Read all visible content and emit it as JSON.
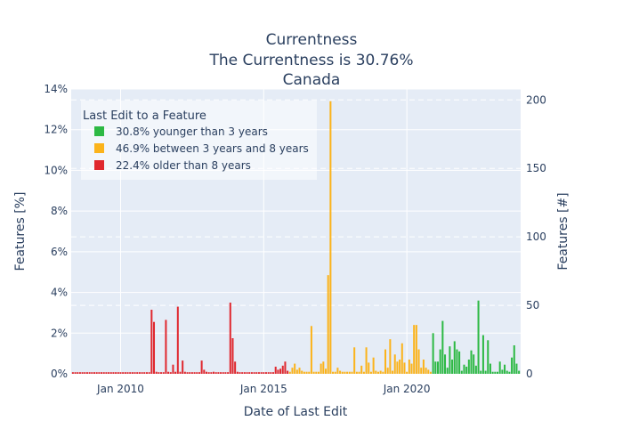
{
  "chart_data": {
    "type": "bar",
    "title": "Currentness",
    "subtitle": "The Currentness is 30.76%",
    "region": "Canada",
    "xlabel": "Date of Last Edit",
    "ylabel_left": "Features [%]",
    "ylabel_right": "Features [#]",
    "x_tick_labels": [
      "Jan 2010",
      "Jan 2015",
      "Jan 2020"
    ],
    "y_left_ticks": [
      "0%",
      "2%",
      "4%",
      "6%",
      "8%",
      "10%",
      "12%",
      "14%"
    ],
    "y_right_ticks": [
      "0",
      "50",
      "100",
      "150",
      "200"
    ],
    "ylim_left": [
      0,
      14
    ],
    "ylim_right": [
      0,
      208
    ],
    "xlim": [
      "2008-05",
      "2023-12"
    ],
    "grid": true,
    "legend": {
      "title": "Last Edit to a Feature",
      "position": "top-left",
      "items": [
        {
          "label": "30.8% younger than 3 years",
          "color": "#2db944"
        },
        {
          "label": "46.9% between 3 years and 8 years",
          "color": "#fbb31b"
        },
        {
          "label": "22.4% older than 8 years",
          "color": "#e0282e"
        }
      ]
    },
    "series": [
      {
        "name": "22.4% older than 8 years",
        "color": "#e0282e",
        "points": [
          {
            "x": "2008-05",
            "y": 0.08
          },
          {
            "x": "2008-06",
            "y": 0.08
          },
          {
            "x": "2008-07",
            "y": 0.08
          },
          {
            "x": "2008-08",
            "y": 0.08
          },
          {
            "x": "2008-09",
            "y": 0.08
          },
          {
            "x": "2008-10",
            "y": 0.08
          },
          {
            "x": "2008-11",
            "y": 0.08
          },
          {
            "x": "2008-12",
            "y": 0.08
          },
          {
            "x": "2009-01",
            "y": 0.08
          },
          {
            "x": "2009-02",
            "y": 0.08
          },
          {
            "x": "2009-03",
            "y": 0.08
          },
          {
            "x": "2009-04",
            "y": 0.08
          },
          {
            "x": "2009-05",
            "y": 0.08
          },
          {
            "x": "2009-06",
            "y": 0.08
          },
          {
            "x": "2009-07",
            "y": 0.08
          },
          {
            "x": "2009-08",
            "y": 0.08
          },
          {
            "x": "2009-09",
            "y": 0.08
          },
          {
            "x": "2009-10",
            "y": 0.08
          },
          {
            "x": "2009-11",
            "y": 0.08
          },
          {
            "x": "2009-12",
            "y": 0.08
          },
          {
            "x": "2010-01",
            "y": 0.08
          },
          {
            "x": "2010-02",
            "y": 0.08
          },
          {
            "x": "2010-03",
            "y": 0.08
          },
          {
            "x": "2010-04",
            "y": 0.08
          },
          {
            "x": "2010-05",
            "y": 0.08
          },
          {
            "x": "2010-06",
            "y": 0.08
          },
          {
            "x": "2010-07",
            "y": 0.08
          },
          {
            "x": "2010-08",
            "y": 0.08
          },
          {
            "x": "2010-09",
            "y": 0.08
          },
          {
            "x": "2010-10",
            "y": 0.08
          },
          {
            "x": "2010-11",
            "y": 0.08
          },
          {
            "x": "2010-12",
            "y": 0.08
          },
          {
            "x": "2011-01",
            "y": 0.08
          },
          {
            "x": "2011-02",
            "y": 3.15
          },
          {
            "x": "2011-03",
            "y": 2.55
          },
          {
            "x": "2011-04",
            "y": 0.1
          },
          {
            "x": "2011-05",
            "y": 0.08
          },
          {
            "x": "2011-06",
            "y": 0.08
          },
          {
            "x": "2011-07",
            "y": 0.08
          },
          {
            "x": "2011-08",
            "y": 2.65
          },
          {
            "x": "2011-09",
            "y": 0.1
          },
          {
            "x": "2011-10",
            "y": 0.08
          },
          {
            "x": "2011-11",
            "y": 0.45
          },
          {
            "x": "2011-12",
            "y": 0.1
          },
          {
            "x": "2012-01",
            "y": 3.3
          },
          {
            "x": "2012-02",
            "y": 0.1
          },
          {
            "x": "2012-03",
            "y": 0.65
          },
          {
            "x": "2012-04",
            "y": 0.1
          },
          {
            "x": "2012-05",
            "y": 0.08
          },
          {
            "x": "2012-06",
            "y": 0.08
          },
          {
            "x": "2012-07",
            "y": 0.08
          },
          {
            "x": "2012-08",
            "y": 0.08
          },
          {
            "x": "2012-09",
            "y": 0.08
          },
          {
            "x": "2012-10",
            "y": 0.08
          },
          {
            "x": "2012-11",
            "y": 0.65
          },
          {
            "x": "2012-12",
            "y": 0.2
          },
          {
            "x": "2013-01",
            "y": 0.1
          },
          {
            "x": "2013-02",
            "y": 0.08
          },
          {
            "x": "2013-03",
            "y": 0.08
          },
          {
            "x": "2013-04",
            "y": 0.1
          },
          {
            "x": "2013-05",
            "y": 0.08
          },
          {
            "x": "2013-06",
            "y": 0.08
          },
          {
            "x": "2013-07",
            "y": 0.08
          },
          {
            "x": "2013-08",
            "y": 0.08
          },
          {
            "x": "2013-09",
            "y": 0.08
          },
          {
            "x": "2013-10",
            "y": 0.08
          },
          {
            "x": "2013-11",
            "y": 3.5
          },
          {
            "x": "2013-12",
            "y": 1.75
          },
          {
            "x": "2014-01",
            "y": 0.6
          },
          {
            "x": "2014-02",
            "y": 0.1
          },
          {
            "x": "2014-03",
            "y": 0.08
          },
          {
            "x": "2014-04",
            "y": 0.08
          },
          {
            "x": "2014-05",
            "y": 0.08
          },
          {
            "x": "2014-06",
            "y": 0.08
          },
          {
            "x": "2014-07",
            "y": 0.08
          },
          {
            "x": "2014-08",
            "y": 0.08
          },
          {
            "x": "2014-09",
            "y": 0.08
          },
          {
            "x": "2014-10",
            "y": 0.08
          },
          {
            "x": "2014-11",
            "y": 0.08
          },
          {
            "x": "2014-12",
            "y": 0.08
          },
          {
            "x": "2015-01",
            "y": 0.08
          },
          {
            "x": "2015-02",
            "y": 0.08
          },
          {
            "x": "2015-03",
            "y": 0.08
          },
          {
            "x": "2015-04",
            "y": 0.08
          },
          {
            "x": "2015-05",
            "y": 0.08
          },
          {
            "x": "2015-06",
            "y": 0.35
          },
          {
            "x": "2015-07",
            "y": 0.2
          },
          {
            "x": "2015-08",
            "y": 0.25
          },
          {
            "x": "2015-09",
            "y": 0.4
          },
          {
            "x": "2015-10",
            "y": 0.6
          },
          {
            "x": "2015-11",
            "y": 0.15
          }
        ]
      },
      {
        "name": "46.9% between 3 years and 8 years",
        "color": "#fbb31b",
        "points": [
          {
            "x": "2015-12",
            "y": 0.1
          },
          {
            "x": "2016-01",
            "y": 0.3
          },
          {
            "x": "2016-02",
            "y": 0.5
          },
          {
            "x": "2016-03",
            "y": 0.2
          },
          {
            "x": "2016-04",
            "y": 0.3
          },
          {
            "x": "2016-05",
            "y": 0.15
          },
          {
            "x": "2016-06",
            "y": 0.1
          },
          {
            "x": "2016-07",
            "y": 0.1
          },
          {
            "x": "2016-08",
            "y": 0.1
          },
          {
            "x": "2016-09",
            "y": 2.35
          },
          {
            "x": "2016-10",
            "y": 0.1
          },
          {
            "x": "2016-11",
            "y": 0.1
          },
          {
            "x": "2016-12",
            "y": 0.1
          },
          {
            "x": "2017-01",
            "y": 0.5
          },
          {
            "x": "2017-02",
            "y": 0.6
          },
          {
            "x": "2017-03",
            "y": 0.25
          },
          {
            "x": "2017-04",
            "y": 4.85
          },
          {
            "x": "2017-05",
            "y": 13.4
          },
          {
            "x": "2017-06",
            "y": 0.1
          },
          {
            "x": "2017-07",
            "y": 0.1
          },
          {
            "x": "2017-08",
            "y": 0.3
          },
          {
            "x": "2017-09",
            "y": 0.15
          },
          {
            "x": "2017-10",
            "y": 0.1
          },
          {
            "x": "2017-11",
            "y": 0.1
          },
          {
            "x": "2017-12",
            "y": 0.1
          },
          {
            "x": "2018-01",
            "y": 0.1
          },
          {
            "x": "2018-02",
            "y": 0.1
          },
          {
            "x": "2018-03",
            "y": 1.3
          },
          {
            "x": "2018-04",
            "y": 0.1
          },
          {
            "x": "2018-05",
            "y": 0.1
          },
          {
            "x": "2018-06",
            "y": 0.4
          },
          {
            "x": "2018-07",
            "y": 0.1
          },
          {
            "x": "2018-08",
            "y": 1.3
          },
          {
            "x": "2018-09",
            "y": 0.55
          },
          {
            "x": "2018-10",
            "y": 0.1
          },
          {
            "x": "2018-11",
            "y": 0.8
          },
          {
            "x": "2018-12",
            "y": 0.15
          },
          {
            "x": "2019-01",
            "y": 0.1
          },
          {
            "x": "2019-02",
            "y": 0.15
          },
          {
            "x": "2019-03",
            "y": 0.1
          },
          {
            "x": "2019-04",
            "y": 1.2
          },
          {
            "x": "2019-05",
            "y": 0.3
          },
          {
            "x": "2019-06",
            "y": 1.7
          },
          {
            "x": "2019-07",
            "y": 0.15
          },
          {
            "x": "2019-08",
            "y": 0.95
          },
          {
            "x": "2019-09",
            "y": 0.6
          },
          {
            "x": "2019-10",
            "y": 0.7
          },
          {
            "x": "2019-11",
            "y": 1.5
          },
          {
            "x": "2019-12",
            "y": 0.55
          },
          {
            "x": "2020-01",
            "y": 0.1
          },
          {
            "x": "2020-02",
            "y": 0.7
          },
          {
            "x": "2020-03",
            "y": 0.5
          },
          {
            "x": "2020-04",
            "y": 2.4
          },
          {
            "x": "2020-05",
            "y": 2.4
          },
          {
            "x": "2020-06",
            "y": 1.2
          },
          {
            "x": "2020-07",
            "y": 0.3
          },
          {
            "x": "2020-08",
            "y": 0.7
          },
          {
            "x": "2020-09",
            "y": 0.3
          },
          {
            "x": "2020-10",
            "y": 0.2
          },
          {
            "x": "2020-11",
            "y": 0.1
          }
        ]
      },
      {
        "name": "30.8% younger than 3 years",
        "color": "#2db944",
        "points": [
          {
            "x": "2020-12",
            "y": 2.0
          },
          {
            "x": "2021-01",
            "y": 0.6
          },
          {
            "x": "2021-02",
            "y": 0.6
          },
          {
            "x": "2021-03",
            "y": 1.2
          },
          {
            "x": "2021-04",
            "y": 2.6
          },
          {
            "x": "2021-05",
            "y": 0.95
          },
          {
            "x": "2021-06",
            "y": 0.3
          },
          {
            "x": "2021-07",
            "y": 1.35
          },
          {
            "x": "2021-08",
            "y": 0.7
          },
          {
            "x": "2021-09",
            "y": 1.6
          },
          {
            "x": "2021-10",
            "y": 1.2
          },
          {
            "x": "2021-11",
            "y": 1.1
          },
          {
            "x": "2021-12",
            "y": 0.15
          },
          {
            "x": "2022-01",
            "y": 0.45
          },
          {
            "x": "2022-02",
            "y": 0.35
          },
          {
            "x": "2022-03",
            "y": 0.7
          },
          {
            "x": "2022-04",
            "y": 1.15
          },
          {
            "x": "2022-05",
            "y": 0.95
          },
          {
            "x": "2022-06",
            "y": 0.4
          },
          {
            "x": "2022-07",
            "y": 3.6
          },
          {
            "x": "2022-08",
            "y": 0.15
          },
          {
            "x": "2022-09",
            "y": 1.9
          },
          {
            "x": "2022-10",
            "y": 0.15
          },
          {
            "x": "2022-11",
            "y": 1.65
          },
          {
            "x": "2022-12",
            "y": 0.5
          },
          {
            "x": "2023-01",
            "y": 0.1
          },
          {
            "x": "2023-02",
            "y": 0.1
          },
          {
            "x": "2023-03",
            "y": 0.1
          },
          {
            "x": "2023-04",
            "y": 0.6
          },
          {
            "x": "2023-05",
            "y": 0.2
          },
          {
            "x": "2023-06",
            "y": 0.45
          },
          {
            "x": "2023-07",
            "y": 0.15
          },
          {
            "x": "2023-08",
            "y": 0.1
          },
          {
            "x": "2023-09",
            "y": 0.8
          },
          {
            "x": "2023-10",
            "y": 1.4
          },
          {
            "x": "2023-11",
            "y": 0.5
          },
          {
            "x": "2023-12",
            "y": 0.15
          }
        ]
      }
    ]
  }
}
